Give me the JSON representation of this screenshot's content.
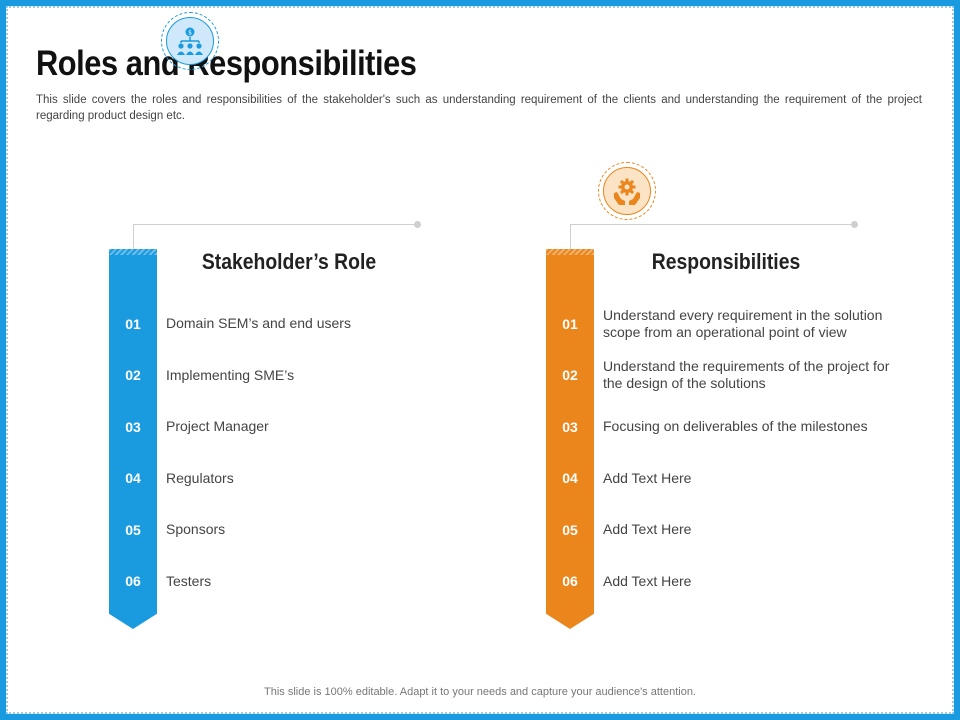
{
  "title": "Roles and Responsibilities",
  "subtitle": "This slide covers the roles and responsibilities of the stakeholder's such as understanding requirement of the clients and understanding the requirement of the project regarding product design etc.",
  "colors": {
    "accent_left": "#1a9be0",
    "accent_right": "#ea861c"
  },
  "left": {
    "icon": "stakeholders-icon",
    "heading": "Stakeholder’s Role",
    "items": [
      {
        "num": "01",
        "text": "Domain SEM’s and end users"
      },
      {
        "num": "02",
        "text": "Implementing SME’s"
      },
      {
        "num": "03",
        "text": "Project Manager"
      },
      {
        "num": "04",
        "text": "Regulators"
      },
      {
        "num": "05",
        "text": "Sponsors"
      },
      {
        "num": "06",
        "text": "Testers"
      }
    ]
  },
  "right": {
    "icon": "hands-gear-icon",
    "heading": "Responsibilities",
    "items": [
      {
        "num": "01",
        "text": "Understand every requirement in the solution scope from an operational point of view"
      },
      {
        "num": "02",
        "text": "Understand the requirements of the project for the design of the solutions"
      },
      {
        "num": "03",
        "text": "Focusing on deliverables of the milestones"
      },
      {
        "num": "04",
        "text": "Add Text Here"
      },
      {
        "num": "05",
        "text": "Add Text Here"
      },
      {
        "num": "06",
        "text": "Add Text Here"
      }
    ]
  },
  "footer": "This slide is 100% editable. Adapt it to your needs and capture your audience's attention."
}
